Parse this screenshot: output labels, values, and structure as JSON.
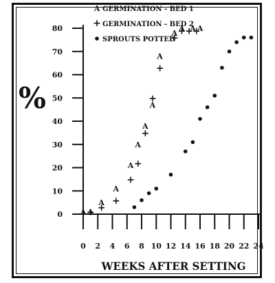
{
  "chart_data": {
    "type": "scatter",
    "xlabel": "WEEKS AFTER SETTING",
    "ylabel": "%",
    "xlim": [
      0,
      24
    ],
    "ylim": [
      0,
      80
    ],
    "x_ticks": [
      0,
      2,
      4,
      6,
      8,
      10,
      12,
      14,
      16,
      18,
      20,
      22,
      24
    ],
    "y_ticks": [
      0,
      10,
      20,
      30,
      40,
      50,
      60,
      70,
      80
    ],
    "grid": false,
    "legend_position": "top",
    "series": [
      {
        "name": "GERMINATION - BED 1",
        "marker": "A",
        "points": [
          [
            0,
            1
          ],
          [
            1,
            1
          ],
          [
            2.5,
            5
          ],
          [
            4.5,
            11
          ],
          [
            6.5,
            21
          ],
          [
            7.5,
            30
          ],
          [
            8.5,
            38
          ],
          [
            9.5,
            47
          ],
          [
            10.5,
            68
          ],
          [
            12.5,
            78
          ],
          [
            13.5,
            80
          ],
          [
            15,
            80
          ],
          [
            16,
            80
          ]
        ]
      },
      {
        "name": "GERMINATION - BED 2",
        "marker": "+",
        "points": [
          [
            1,
            1
          ],
          [
            2.5,
            3
          ],
          [
            4.5,
            6
          ],
          [
            6.5,
            15
          ],
          [
            7.5,
            22
          ],
          [
            8.5,
            35
          ],
          [
            9.5,
            50
          ],
          [
            10.5,
            63
          ],
          [
            12.5,
            76
          ],
          [
            13.5,
            79
          ],
          [
            14.5,
            79
          ],
          [
            15.5,
            79
          ]
        ]
      },
      {
        "name": "SPROUTS POTTED",
        "marker": "•",
        "points": [
          [
            7,
            3
          ],
          [
            8,
            6
          ],
          [
            9,
            9
          ],
          [
            10,
            11
          ],
          [
            12,
            17
          ],
          [
            14,
            27
          ],
          [
            15,
            31
          ],
          [
            16,
            41
          ],
          [
            17,
            46
          ],
          [
            18,
            51
          ],
          [
            19,
            63
          ],
          [
            20,
            70
          ],
          [
            21,
            74
          ],
          [
            22,
            76
          ],
          [
            23,
            76
          ]
        ]
      }
    ]
  }
}
